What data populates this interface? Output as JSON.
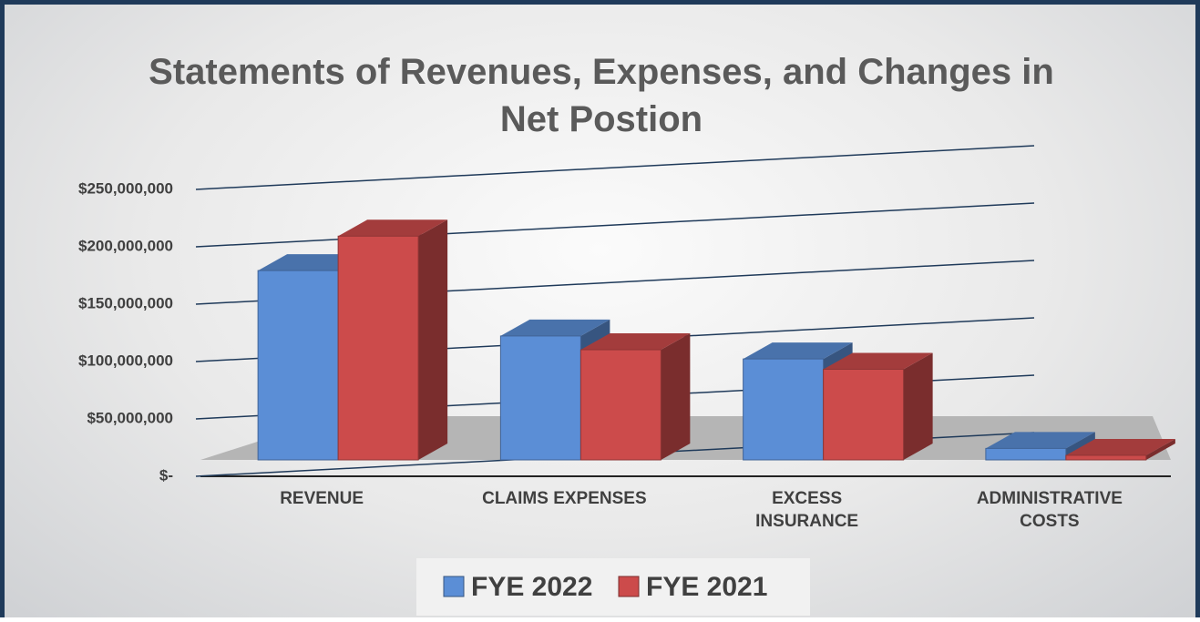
{
  "chart_data": {
    "type": "bar3d",
    "title": "Statements of Revenues, Expenses, and Changes in Net Postion",
    "categories": [
      "REVENUE",
      "CLAIMS EXPENSES",
      "EXCESS INSURANCE",
      "ADMINISTRATIVE COSTS"
    ],
    "series": [
      {
        "name": "FYE 2022",
        "color": "#5b8ed6",
        "values": [
          165000000,
          108000000,
          88000000,
          10000000
        ]
      },
      {
        "name": "FYE 2021",
        "color": "#cc4b4b",
        "values": [
          195000000,
          96000000,
          79000000,
          4000000
        ]
      }
    ],
    "ylim": [
      0,
      250000000
    ],
    "yticks": [
      {
        "value": 0,
        "label": "$-"
      },
      {
        "value": 50000000,
        "label": "$50,000,000"
      },
      {
        "value": 100000000,
        "label": "$100,000,000"
      },
      {
        "value": 150000000,
        "label": "$150,000,000"
      },
      {
        "value": 200000000,
        "label": "$200,000,000"
      },
      {
        "value": 250000000,
        "label": "$250,000,000"
      }
    ],
    "grid": true,
    "legend": "bottom"
  }
}
